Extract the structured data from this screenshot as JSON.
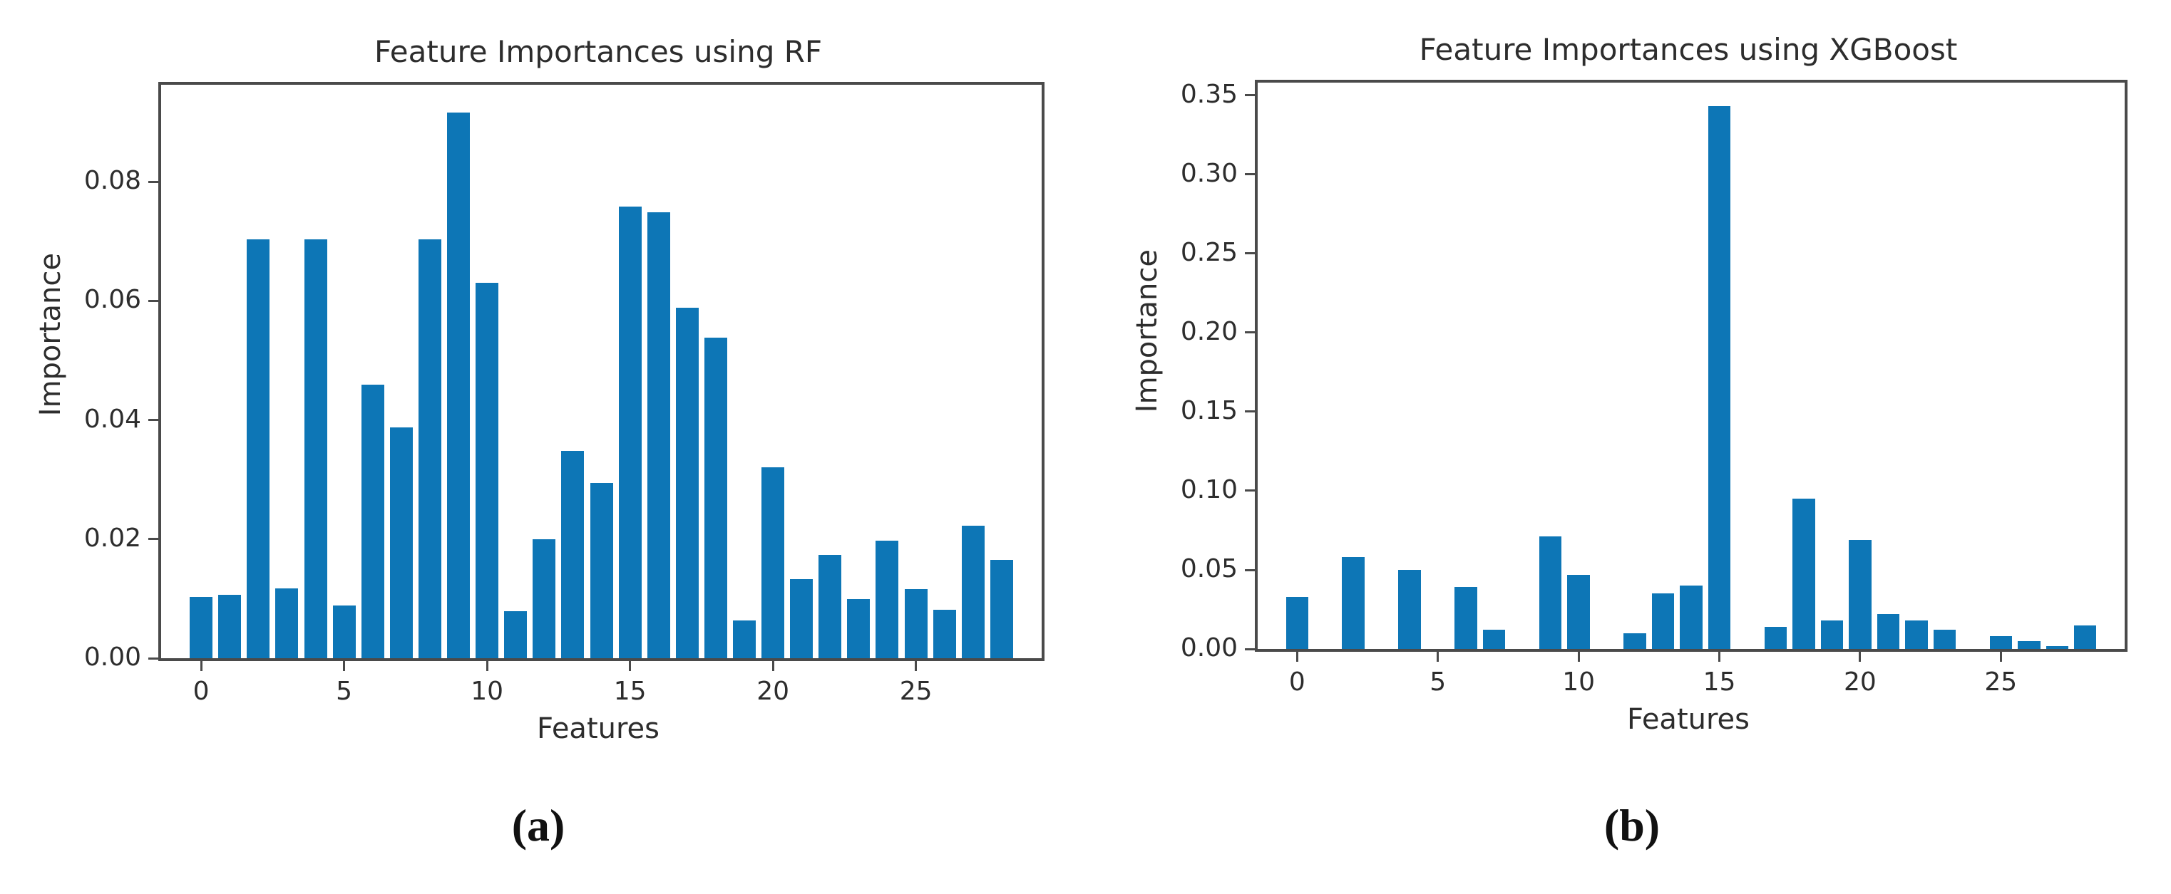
{
  "figure": {
    "background": "#ffffff",
    "bar_color": "#0d76b6",
    "spine_color": "#4a4a4a",
    "text_color": "#2d2d2d",
    "captions": [
      "(a)",
      "(b)"
    ]
  },
  "chart_data": [
    {
      "type": "bar",
      "title": "Feature Importances using RF",
      "xlabel": "Features",
      "ylabel": "Importance",
      "x": [
        0,
        1,
        2,
        3,
        4,
        5,
        6,
        7,
        8,
        9,
        10,
        11,
        12,
        13,
        14,
        15,
        16,
        17,
        18,
        19,
        20,
        21,
        22,
        23,
        24,
        25,
        26,
        27,
        28
      ],
      "values": [
        0.0103,
        0.0107,
        0.0703,
        0.0117,
        0.0703,
        0.0089,
        0.046,
        0.0388,
        0.0703,
        0.0916,
        0.063,
        0.0079,
        0.02,
        0.0348,
        0.0294,
        0.0759,
        0.0749,
        0.0589,
        0.0538,
        0.0063,
        0.0321,
        0.0133,
        0.0174,
        0.0099,
        0.0197,
        0.0116,
        0.0082,
        0.0222,
        0.0165
      ],
      "bar_width": 0.8,
      "xticks": [
        0,
        5,
        10,
        15,
        20,
        25
      ],
      "ytick_labels": [
        "0.00",
        "0.02",
        "0.04",
        "0.06",
        "0.08"
      ],
      "ytick_values": [
        0,
        0.02,
        0.04,
        0.06,
        0.08
      ],
      "xlim": [
        -1.4,
        29.4
      ],
      "ylim": [
        0,
        0.0963
      ],
      "grid": false,
      "legend": null
    },
    {
      "type": "bar",
      "title": "Feature Importances using XGBoost",
      "xlabel": "Features",
      "ylabel": "Importance",
      "x": [
        0,
        1,
        2,
        3,
        4,
        5,
        6,
        7,
        8,
        9,
        10,
        11,
        12,
        13,
        14,
        15,
        16,
        17,
        18,
        19,
        20,
        21,
        22,
        23,
        24,
        25,
        26,
        27,
        28
      ],
      "values": [
        0.033,
        0,
        0.058,
        0,
        0.05,
        0,
        0.039,
        0.012,
        0,
        0.071,
        0.047,
        0,
        0.01,
        0.035,
        0.04,
        0.343,
        0,
        0.014,
        0.095,
        0.018,
        0.069,
        0.022,
        0.018,
        0.012,
        0,
        0.008,
        0.005,
        0.002,
        0.015
      ],
      "bar_width": 0.8,
      "xticks": [
        0,
        5,
        10,
        15,
        20,
        25
      ],
      "ytick_labels": [
        "0.00",
        "0.05",
        "0.10",
        "0.15",
        "0.20",
        "0.25",
        "0.30",
        "0.35"
      ],
      "ytick_values": [
        0,
        0.05,
        0.1,
        0.15,
        0.2,
        0.25,
        0.3,
        0.35
      ],
      "xlim": [
        -1.4,
        29.4
      ],
      "ylim": [
        0,
        0.358
      ],
      "grid": false,
      "legend": null
    }
  ]
}
